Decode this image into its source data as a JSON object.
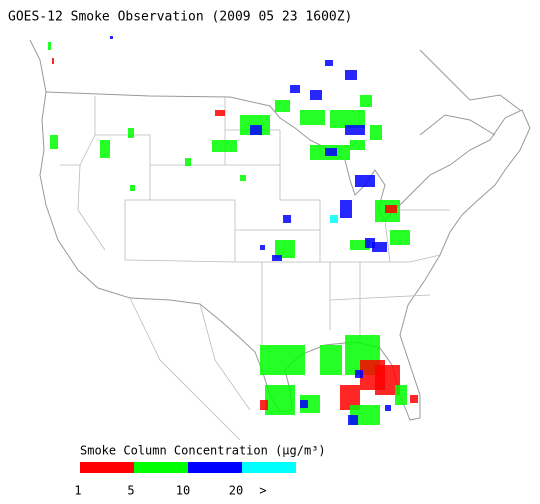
{
  "title": "GOES-12 Smoke Observation (2009 05 23  1600Z)",
  "legend": {
    "title": "Smoke Column Concentration (μg/m³)",
    "colors": [
      "#ff0000",
      "#00ff00",
      "#0000ff",
      "#00ffff"
    ],
    "labels": [
      "1",
      "5",
      "10",
      "20",
      ">"
    ]
  }
}
